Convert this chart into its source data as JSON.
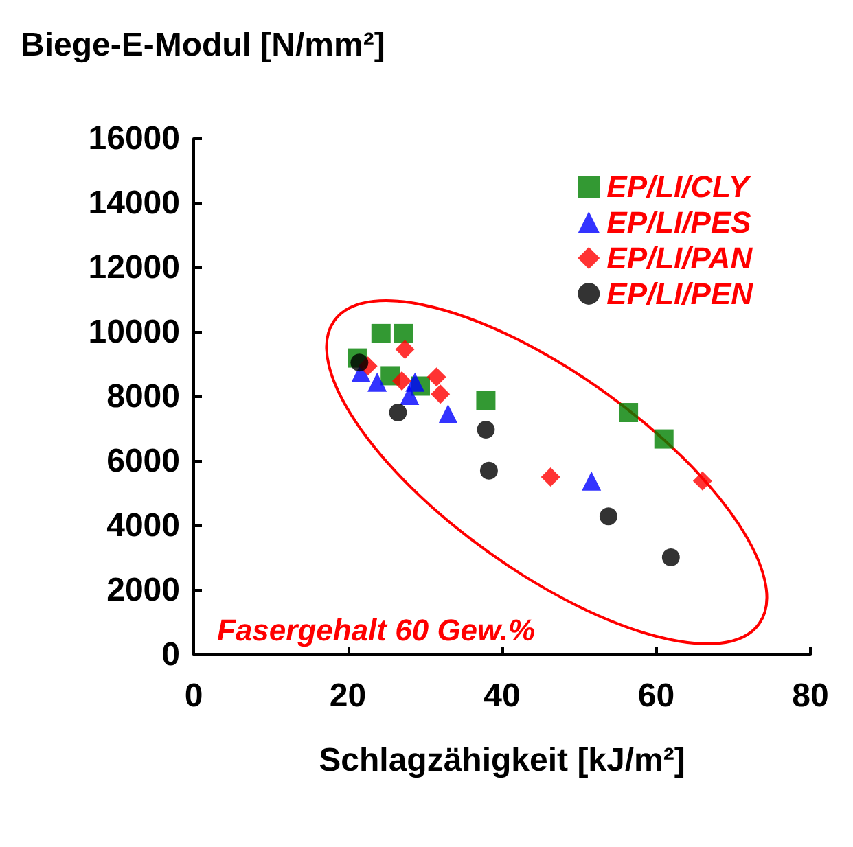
{
  "chart_data": {
    "type": "scatter",
    "xlabel": "Schlagzähigkeit [kJ/m²]",
    "ylabel": "Biege-E-Modul [N/mm²]",
    "annotations": [
      "Fasergehalt 60 Gew.%"
    ],
    "xlim": [
      0,
      80
    ],
    "xticks": [
      0,
      20,
      40,
      60,
      80
    ],
    "ylim": [
      0,
      16000
    ],
    "yticks": [
      0,
      2000,
      4000,
      6000,
      8000,
      10000,
      12000,
      14000,
      16000
    ],
    "grid": false,
    "legend": "top right",
    "series": [
      {
        "name": "EP/LI/CLY",
        "color": "#008000",
        "marker": "square",
        "x": [
          21.2,
          24.3,
          27.2,
          25.5,
          29.4,
          37.9,
          56.4,
          61.0
        ],
        "values": [
          9200,
          9960,
          9960,
          8650,
          8330,
          7880,
          7510,
          6690
        ]
      },
      {
        "name": "EP/LI/PES",
        "color": "#0000ff",
        "marker": "triangle",
        "x": [
          21.7,
          23.8,
          28.7,
          28.0,
          33.0,
          51.6
        ],
        "values": [
          8750,
          8450,
          8450,
          8040,
          7470,
          5390
        ]
      },
      {
        "name": "EP/LI/PAN",
        "color": "#ff0000",
        "marker": "diamond",
        "x": [
          27.4,
          22.6,
          27.0,
          31.5,
          32.0,
          46.3,
          66.0
        ],
        "values": [
          9470,
          8950,
          8490,
          8610,
          8080,
          5510,
          5390
        ]
      },
      {
        "name": "EP/LI/PEN",
        "color": "#000000",
        "marker": "circle",
        "x": [
          21.5,
          26.5,
          37.9,
          38.3,
          53.8,
          61.9
        ],
        "values": [
          9060,
          7510,
          6980,
          5710,
          4290,
          3020
        ]
      }
    ]
  }
}
